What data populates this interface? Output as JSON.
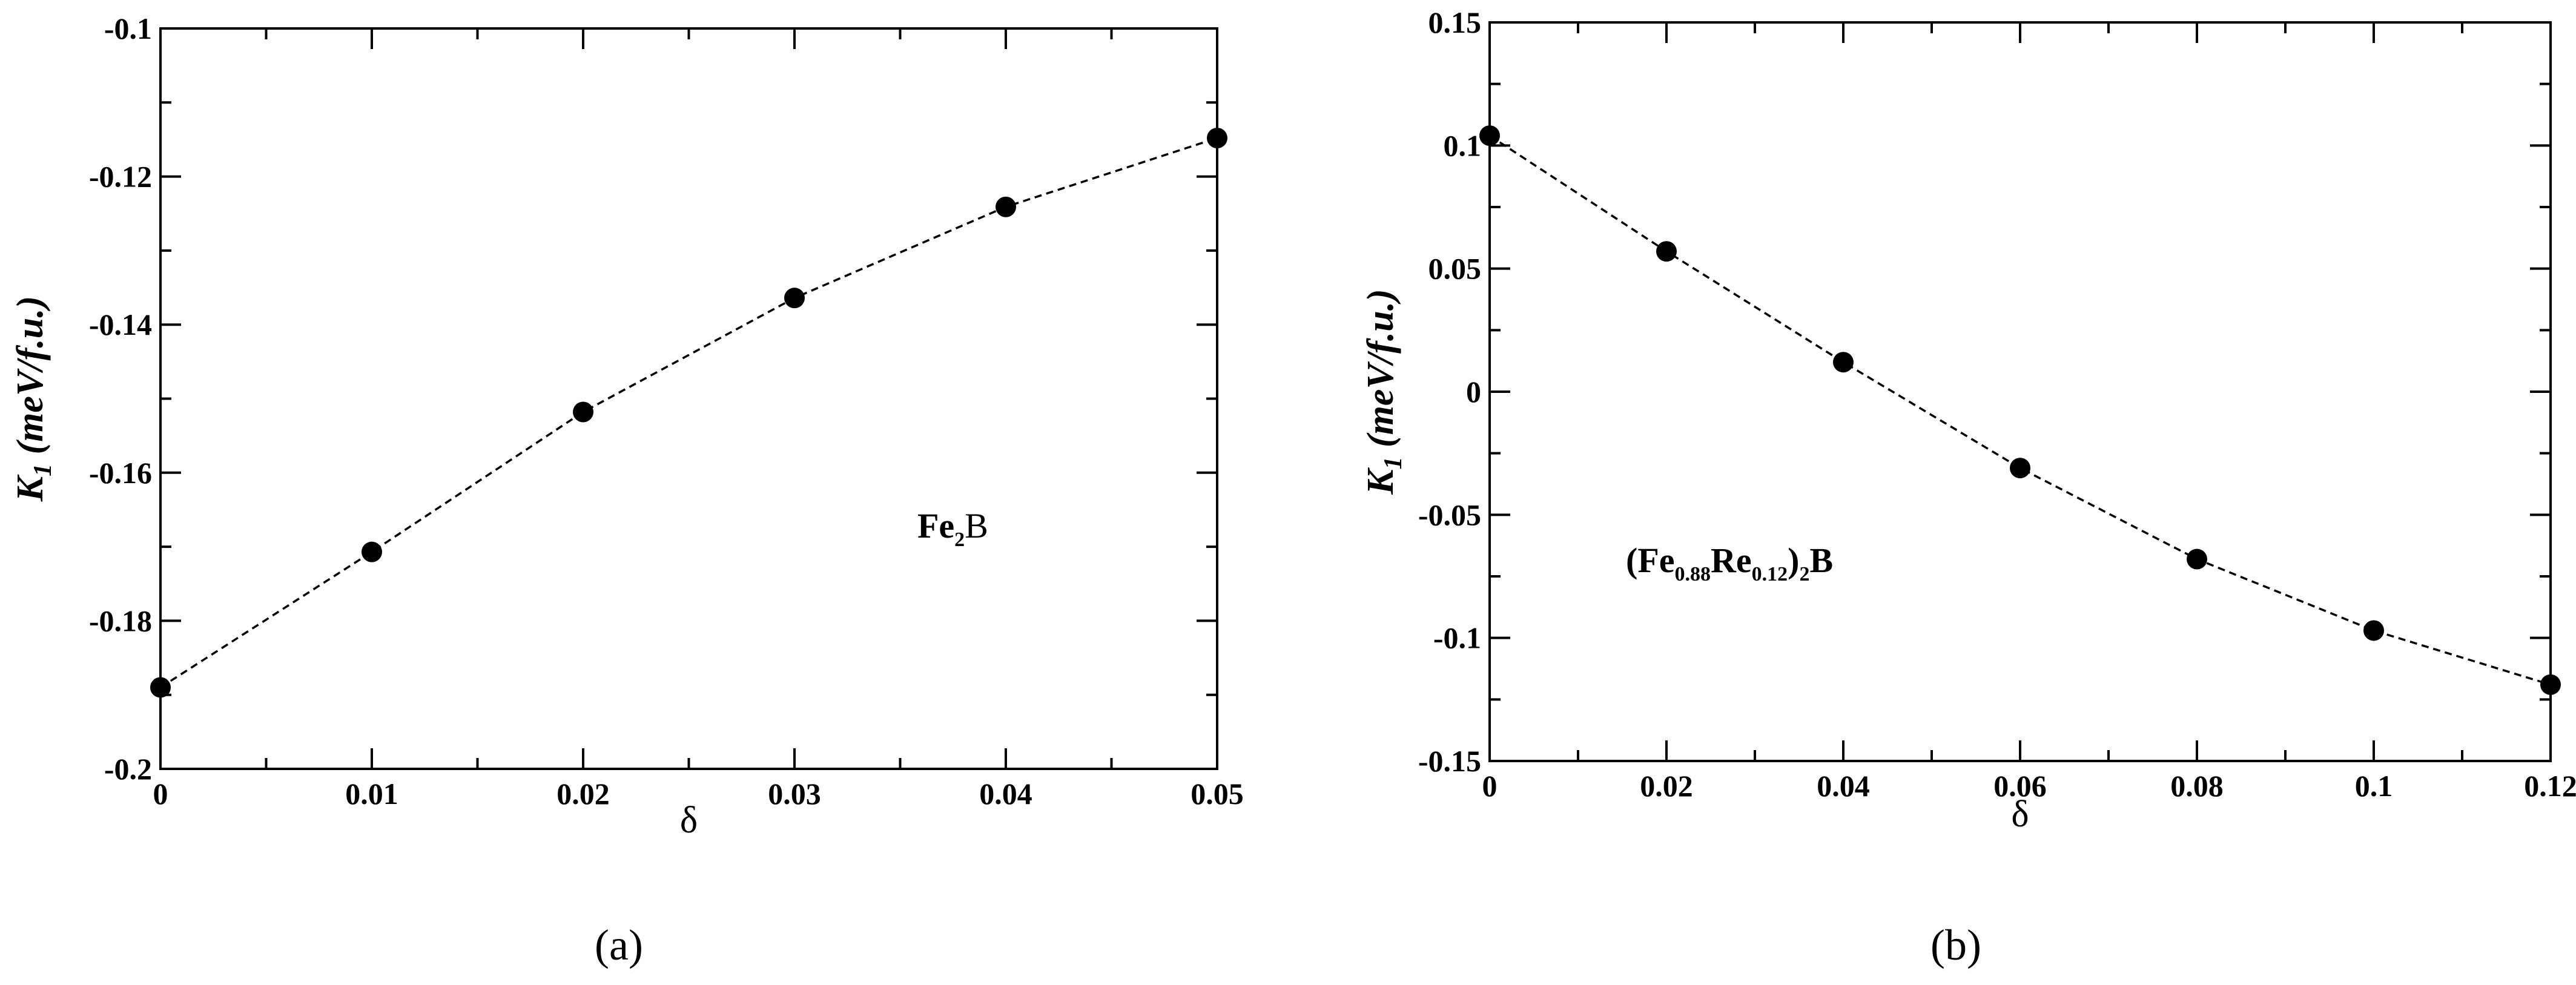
{
  "chart_data": [
    {
      "type": "line",
      "panel_label": "(a)",
      "xlabel": "δ",
      "ylabel": {
        "main": "K",
        "sub": "1",
        "units": " (meV/f.u.)"
      },
      "xlim": [
        0,
        0.05
      ],
      "ylim": [
        -0.2,
        -0.1
      ],
      "xticks": [
        0,
        0.01,
        0.02,
        0.03,
        0.04,
        0.05
      ],
      "xtick_labels": [
        "0",
        "0.01",
        "0.02",
        "0.03",
        "0.04",
        "0.05"
      ],
      "yticks": [
        -0.2,
        -0.18,
        -0.16,
        -0.14,
        -0.12,
        -0.1
      ],
      "ytick_labels": [
        "-0.2",
        "-0.18",
        "-0.16",
        "-0.14",
        "-0.12",
        "-0.1"
      ],
      "grid": false,
      "annotation": {
        "parts": [
          {
            "t": "Fe",
            "bold": true
          },
          {
            "t": "2",
            "sub": true,
            "bold": true
          },
          {
            "t": "B",
            "bold": false
          }
        ]
      },
      "series": [
        {
          "x": [
            0,
            0.01,
            0.02,
            0.03,
            0.04,
            0.05
          ],
          "y": [
            -0.189,
            -0.1707,
            -0.1518,
            -0.1364,
            -0.1241,
            -0.1148
          ],
          "line_style": "dashed",
          "marker": "filled-circle",
          "color": "#000000"
        }
      ]
    },
    {
      "type": "line",
      "panel_label": "(b)",
      "xlabel": "δ",
      "ylabel": {
        "main": "K",
        "sub": "1",
        "units": " (meV/f.u.)"
      },
      "xlim": [
        0,
        0.12
      ],
      "ylim": [
        -0.15,
        0.15
      ],
      "xticks": [
        0,
        0.02,
        0.04,
        0.06,
        0.08,
        0.1,
        0.12
      ],
      "xtick_labels": [
        "0",
        "0.02",
        "0.04",
        "0.06",
        "0.08",
        "0.1",
        "0.12"
      ],
      "yticks": [
        -0.15,
        -0.1,
        -0.05,
        0,
        0.05,
        0.1,
        0.15
      ],
      "ytick_labels": [
        "-0.15",
        "-0.1",
        "-0.05",
        "0",
        "0.05",
        "0.1",
        "0.15"
      ],
      "grid": false,
      "annotation": {
        "parts": [
          {
            "t": "(Fe",
            "bold": true
          },
          {
            "t": "0.88",
            "sub": true,
            "bold": true
          },
          {
            "t": "Re",
            "bold": true
          },
          {
            "t": "0.12",
            "sub": true,
            "bold": true
          },
          {
            "t": ")",
            "bold": true
          },
          {
            "t": "2",
            "sub": true,
            "bold": true
          },
          {
            "t": "B",
            "bold": true
          }
        ]
      },
      "series": [
        {
          "x": [
            0,
            0.02,
            0.04,
            0.06,
            0.08,
            0.1,
            0.12
          ],
          "y": [
            0.104,
            0.057,
            0.012,
            -0.031,
            -0.068,
            -0.097,
            -0.119
          ],
          "line_style": "dashed",
          "marker": "filled-circle",
          "color": "#000000"
        }
      ]
    }
  ]
}
